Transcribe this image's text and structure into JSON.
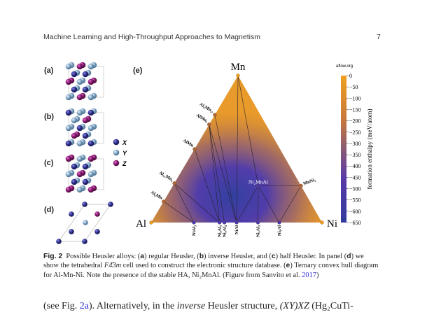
{
  "header": {
    "title": "Machine Learning and High-Throughput Approaches to Magnetism",
    "page_number": "7"
  },
  "figure": {
    "panel_labels": {
      "a": "(a)",
      "b": "(b)",
      "c": "(c)",
      "d": "(d)",
      "e": "(e)"
    },
    "legend": [
      {
        "label": "X",
        "color": "#35359a"
      },
      {
        "label": "Y",
        "color": "#8fb2cf"
      },
      {
        "label": "Z",
        "color": "#98237f"
      }
    ],
    "ternary": {
      "vertices": {
        "top": "Mn",
        "left": "Al",
        "right": "Ni"
      },
      "watermark": "aflow.org",
      "colorbar": {
        "label": "formation enthalpy (meV/atom)",
        "ticks": [
          "0",
          "−50",
          "−100",
          "−150",
          "−200",
          "−250",
          "−300",
          "−350",
          "−400",
          "−450",
          "−500",
          "−550",
          "−600",
          "−650"
        ],
        "range": [
          0,
          -650
        ],
        "colors": {
          "high": "#f0a020",
          "mid": "#a0605a",
          "low": "#3a3aa0",
          "lowest": "#2f3b9c"
        }
      },
      "edge_compounds": [
        {
          "label": "Al₄Mn₁₁",
          "Mn": 0.733,
          "Ni": 0,
          "side": "left"
        },
        {
          "label": "AlMn₂",
          "Mn": 0.667,
          "Ni": 0,
          "side": "left"
        },
        {
          "label": "AlMn",
          "Mn": 0.5,
          "Ni": 0,
          "side": "left"
        },
        {
          "label": "Al₁₁Mn₄",
          "Mn": 0.267,
          "Ni": 0,
          "side": "left"
        },
        {
          "label": "Al₆Mn",
          "Mn": 0.143,
          "Ni": 0,
          "side": "left"
        },
        {
          "label": "MnNi₃",
          "Mn": 0.25,
          "Ni": 0.75,
          "side": "right"
        }
      ],
      "base_compounds": [
        {
          "label": "NiAl₃",
          "Ni": 0.25
        },
        {
          "label": "Ni₂Al₃",
          "Ni": 0.4
        },
        {
          "label": "Ni₃Al₄",
          "Ni": 0.4286
        },
        {
          "label": "NiAl",
          "Ni": 0.5
        },
        {
          "label": "Ni₅Al₃",
          "Ni": 0.625
        },
        {
          "label": "Ni₃Al",
          "Ni": 0.75
        }
      ],
      "ternary_compound": {
        "label": "Ni₂MnAl",
        "Ni": 0.5,
        "Mn": 0.25
      },
      "hull_edges": [
        [
          "Mn",
          "NiAl"
        ],
        [
          "Mn",
          "Ni₂MnAl"
        ],
        [
          "Al₄Mn₁₁",
          "NiAl"
        ],
        [
          "AlMn₂",
          "Ni₂Al₃"
        ],
        [
          "AlMn₂",
          "Ni₃Al₄"
        ],
        [
          "AlMn₂",
          "NiAl"
        ],
        [
          "AlMn",
          "Ni₂Al₃"
        ],
        [
          "Al₁₁Mn₄",
          "NiAl₃"
        ],
        [
          "Al₁₁Mn₄",
          "Ni₂Al₃"
        ],
        [
          "Al₆Mn",
          "NiAl₃"
        ],
        [
          "Ni₂MnAl",
          "NiAl"
        ],
        [
          "Ni₂MnAl",
          "Ni₅Al₃"
        ],
        [
          "Ni₂MnAl",
          "Ni₃Al"
        ],
        [
          "Ni₂MnAl",
          "MnNi₃"
        ],
        [
          "MnNi₃",
          "Ni₃Al"
        ]
      ]
    }
  },
  "caption": {
    "fig_label": "Fig. 2",
    "part1": "Possible Heusler alloys: (",
    "a": "a",
    "part2": ") regular Heusler, (",
    "b": "b",
    "part3": ") inverse Heusler, and (",
    "c": "c",
    "part4": ") half Heusler. In panel (",
    "d": "d",
    "part5": ") we show the tetrahedral ",
    "space_group": "F4̄3m",
    "part6": " cell used to construct the electronic structure database. (",
    "e": "e",
    "part7": ") Ternary convex hull diagram for Al-Mn-Ni. Note the presence of the stable HA, Ni₂MnAl. (Figure from Sanvito et al. ",
    "ref_year": "2017",
    "part8": ")"
  },
  "body": {
    "t1": "(see Fig. ",
    "fig_ref": "2a",
    "t2": "). Alternatively, in the ",
    "inverse": "inverse",
    "t3": " Heusler structure, ",
    "formula": "(XY)XZ",
    "t4": " (Hg₂CuTi-"
  }
}
